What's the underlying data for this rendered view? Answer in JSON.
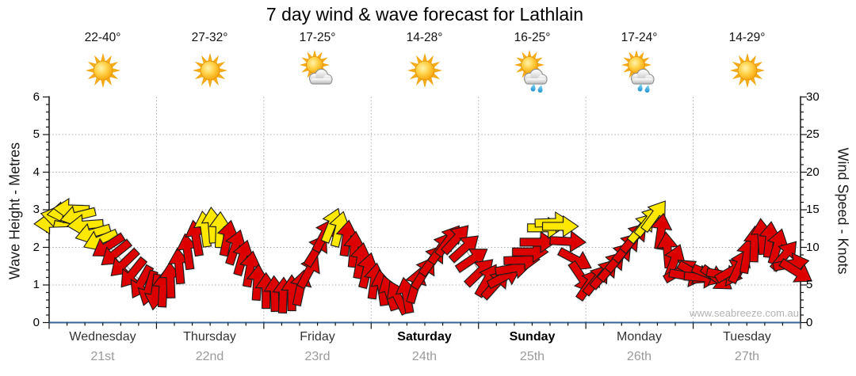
{
  "title": "7 day wind & wave forecast for Lathlain",
  "watermark": "www.seabreeze.com.au",
  "left_axis": {
    "label": "Wave Height - Metres",
    "min": 0,
    "max": 6,
    "ticks": [
      0,
      1,
      2,
      3,
      4,
      5,
      6
    ]
  },
  "right_axis": {
    "label": "Wind Speed - Knots",
    "min": 0,
    "max": 30,
    "ticks": [
      0,
      5,
      10,
      15,
      20,
      25,
      30
    ]
  },
  "days": [
    {
      "name": "Wednesday",
      "date": "21st",
      "temp": "22-40°",
      "icon": "sunny",
      "weekend": false
    },
    {
      "name": "Thursday",
      "date": "22nd",
      "temp": "27-32°",
      "icon": "sunny",
      "weekend": false
    },
    {
      "name": "Friday",
      "date": "23rd",
      "temp": "17-25°",
      "icon": "partly-cloudy",
      "weekend": false
    },
    {
      "name": "Saturday",
      "date": "24th",
      "temp": "14-28°",
      "icon": "sunny",
      "weekend": true
    },
    {
      "name": "Sunday",
      "date": "25th",
      "temp": "16-25°",
      "icon": "showers",
      "weekend": true
    },
    {
      "name": "Monday",
      "date": "26th",
      "temp": "17-24°",
      "icon": "showers",
      "weekend": false
    },
    {
      "name": "Tuesday",
      "date": "27th",
      "temp": "14-29°",
      "icon": "sunny",
      "weekend": false
    }
  ],
  "colors": {
    "arrow_yellow": "#ffe800",
    "arrow_red": "#dc0000",
    "arrow_outline": "#1a1a1a",
    "axis_bottom_line": "#33669c",
    "axis_line": "#222222",
    "grid_line": "#ababab",
    "connector_line": "#9a9a9a",
    "date_text": "#9a9a9a",
    "watermark_text": "#b4b4b4"
  },
  "chart_data": {
    "type": "wind-arrow-timeseries",
    "title": "7 day wind & wave forecast for Lathlain",
    "x_categories": [
      "Wednesday 21st",
      "Thursday 22nd",
      "Friday 23rd",
      "Saturday 24th",
      "Sunday 25th",
      "Monday 26th",
      "Tuesday 27th"
    ],
    "x_range_days": 7,
    "left_ylim_metres": [
      0,
      6
    ],
    "right_ylim_knots": [
      0,
      30
    ],
    "scale_note": "1 metre on left axis aligns with 5 knots on right axis; arrows plot wind speed in knots",
    "arrow_format": "[t_days_from_wed_midnight, wind_speed_knots, direction_deg_clockwise_from_up, color(y=yellow_stronger, r=red_lighter)]",
    "arrows": [
      [
        0.03,
        13.2,
        268,
        "y"
      ],
      [
        0.09,
        14.0,
        282,
        "y"
      ],
      [
        0.15,
        14.7,
        262,
        "y"
      ],
      [
        0.21,
        15.1,
        272,
        "y"
      ],
      [
        0.27,
        14.2,
        256,
        "y"
      ],
      [
        0.34,
        13.0,
        266,
        "y"
      ],
      [
        0.41,
        11.9,
        254,
        "y"
      ],
      [
        0.48,
        11.0,
        247,
        "y"
      ],
      [
        0.55,
        10.2,
        237,
        "r"
      ],
      [
        0.62,
        9.2,
        231,
        "r"
      ],
      [
        0.7,
        7.9,
        226,
        "r"
      ],
      [
        0.78,
        6.6,
        219,
        "r"
      ],
      [
        0.86,
        5.4,
        209,
        "r"
      ],
      [
        0.93,
        4.6,
        197,
        "r"
      ],
      [
        0.99,
        4.1,
        188,
        "r"
      ],
      [
        1.06,
        4.4,
        3,
        "r"
      ],
      [
        1.13,
        5.6,
        358,
        "r"
      ],
      [
        1.21,
        7.5,
        355,
        "r"
      ],
      [
        1.29,
        9.4,
        352,
        "r"
      ],
      [
        1.37,
        11.2,
        350,
        "r"
      ],
      [
        1.45,
        12.4,
        352,
        "y"
      ],
      [
        1.52,
        12.9,
        356,
        "y"
      ],
      [
        1.59,
        12.3,
        2,
        "y"
      ],
      [
        1.66,
        11.2,
        12,
        "r"
      ],
      [
        1.73,
        10.0,
        18,
        "r"
      ],
      [
        1.8,
        8.6,
        16,
        "r"
      ],
      [
        1.87,
        7.1,
        10,
        "r"
      ],
      [
        1.94,
        5.3,
        4,
        "r"
      ],
      [
        2.02,
        4.2,
        0,
        "r"
      ],
      [
        2.1,
        3.8,
        358,
        "r"
      ],
      [
        2.18,
        3.6,
        2,
        "r"
      ],
      [
        2.26,
        3.9,
        0,
        "r"
      ],
      [
        2.34,
        4.6,
        12,
        "r"
      ],
      [
        2.42,
        6.8,
        28,
        "r"
      ],
      [
        2.49,
        9.6,
        32,
        "r"
      ],
      [
        2.56,
        11.6,
        28,
        "r"
      ],
      [
        2.63,
        12.9,
        22,
        "y"
      ],
      [
        2.7,
        12.4,
        14,
        "y"
      ],
      [
        2.77,
        11.2,
        8,
        "r"
      ],
      [
        2.84,
        9.7,
        6,
        "r"
      ],
      [
        2.9,
        8.2,
        10,
        "r"
      ],
      [
        2.96,
        6.9,
        14,
        "r"
      ],
      [
        3.03,
        5.5,
        8,
        "r"
      ],
      [
        3.1,
        4.6,
        352,
        "r"
      ],
      [
        3.17,
        3.9,
        342,
        "r"
      ],
      [
        3.25,
        3.3,
        334,
        "r"
      ],
      [
        3.33,
        3.6,
        350,
        "r"
      ],
      [
        3.41,
        4.9,
        16,
        "r"
      ],
      [
        3.49,
        6.6,
        32,
        "r"
      ],
      [
        3.57,
        8.3,
        36,
        "r"
      ],
      [
        3.65,
        9.9,
        34,
        "r"
      ],
      [
        3.72,
        10.9,
        36,
        "r"
      ],
      [
        3.79,
        11.1,
        42,
        "r"
      ],
      [
        3.87,
        9.9,
        48,
        "r"
      ],
      [
        3.94,
        8.4,
        56,
        "r"
      ],
      [
        4.01,
        6.7,
        46,
        "r"
      ],
      [
        4.08,
        5.6,
        30,
        "r"
      ],
      [
        4.16,
        5.1,
        42,
        "r"
      ],
      [
        4.24,
        6.1,
        62,
        "r"
      ],
      [
        4.32,
        7.2,
        80,
        "r"
      ],
      [
        4.4,
        8.3,
        88,
        "r"
      ],
      [
        4.48,
        9.4,
        90,
        "r"
      ],
      [
        4.55,
        10.7,
        90,
        "r"
      ],
      [
        4.62,
        12.6,
        90,
        "y"
      ],
      [
        4.69,
        13.3,
        88,
        "y"
      ],
      [
        4.76,
        12.8,
        90,
        "y"
      ],
      [
        4.83,
        10.8,
        93,
        "r"
      ],
      [
        4.9,
        8.4,
        118,
        "r"
      ],
      [
        4.96,
        6.0,
        146,
        "r"
      ],
      [
        5.03,
        5.1,
        34,
        "r"
      ],
      [
        5.1,
        5.7,
        38,
        "r"
      ],
      [
        5.17,
        6.5,
        40,
        "r"
      ],
      [
        5.24,
        7.5,
        40,
        "r"
      ],
      [
        5.31,
        8.7,
        40,
        "r"
      ],
      [
        5.38,
        10.0,
        40,
        "r"
      ],
      [
        5.45,
        11.3,
        40,
        "r"
      ],
      [
        5.52,
        12.6,
        40,
        "y"
      ],
      [
        5.58,
        13.5,
        38,
        "y"
      ],
      [
        5.64,
        14.2,
        36,
        "y"
      ],
      [
        5.7,
        12.1,
        8,
        "r"
      ],
      [
        5.76,
        9.6,
        355,
        "r"
      ],
      [
        5.82,
        8.1,
        20,
        "r"
      ],
      [
        5.88,
        6.9,
        60,
        "r"
      ],
      [
        5.94,
        6.2,
        100,
        "r"
      ],
      [
        6.01,
        6.6,
        120,
        "r"
      ],
      [
        6.08,
        6.0,
        95,
        "r"
      ],
      [
        6.15,
        6.4,
        112,
        "r"
      ],
      [
        6.22,
        5.9,
        126,
        "r"
      ],
      [
        6.29,
        6.3,
        100,
        "r"
      ],
      [
        6.36,
        6.9,
        60,
        "r"
      ],
      [
        6.43,
        7.5,
        25,
        "r"
      ],
      [
        6.5,
        8.9,
        10,
        "r"
      ],
      [
        6.57,
        10.4,
        2,
        "r"
      ],
      [
        6.64,
        11.4,
        356,
        "r"
      ],
      [
        6.71,
        11.0,
        6,
        "r"
      ],
      [
        6.78,
        10.1,
        16,
        "r"
      ],
      [
        6.85,
        8.9,
        40,
        "r"
      ],
      [
        6.91,
        7.8,
        80,
        "r"
      ],
      [
        6.96,
        6.8,
        122,
        "r"
      ]
    ]
  }
}
